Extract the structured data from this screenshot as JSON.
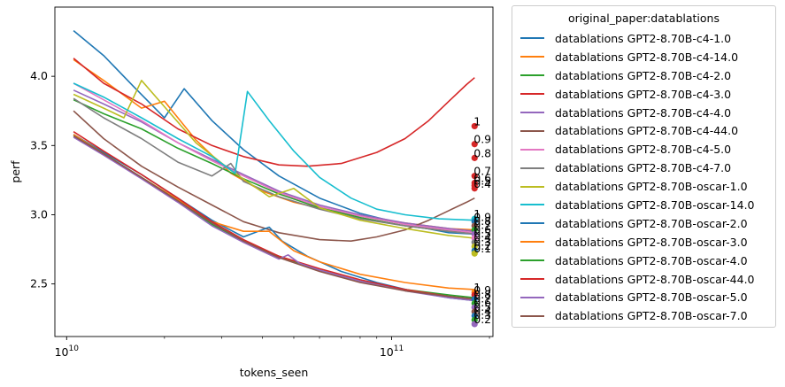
{
  "chart_data": {
    "type": "line",
    "xlabel": "tokens_seen",
    "ylabel": "perf",
    "xscale": "log",
    "xlim": [
      9200000000.0,
      205000000000.0
    ],
    "ylim": [
      2.12,
      4.5
    ],
    "x_ticks": [
      {
        "value": 10000000000.0,
        "base": "10",
        "exp": "10"
      },
      {
        "value": 100000000000.0,
        "base": "10",
        "exp": "11"
      }
    ],
    "y_ticks": [
      2.5,
      3.0,
      3.5,
      4.0
    ],
    "y_tick_labels": [
      "2.5",
      "3.0",
      "3.5",
      "4.0"
    ],
    "legend_title": "original_paper:datablations",
    "legend_position": "outside-right",
    "grid": false,
    "series": [
      {
        "name": "datablations GPT2-8.70B-c4-1.0",
        "color": "#1f77b4",
        "x": [
          10500000000.0,
          13000000000.0,
          16000000000.0,
          20000000000.0,
          23000000000.0,
          28000000000.0,
          35000000000.0,
          45000000000.0,
          60000000000.0,
          80000000000.0,
          110000000000.0,
          150000000000.0,
          180000000000.0
        ],
        "y": [
          4.33,
          4.15,
          3.93,
          3.7,
          3.91,
          3.68,
          3.47,
          3.28,
          3.12,
          3.01,
          2.93,
          2.87,
          2.86
        ]
      },
      {
        "name": "datablations GPT2-8.70B-c4-14.0",
        "color": "#ff7f0e",
        "x": [
          10500000000.0,
          13000000000.0,
          17000000000.0,
          20000000000.0,
          25000000000.0,
          32000000000.0,
          40000000000.0,
          50000000000.0,
          65000000000.0,
          80000000000.0,
          110000000000.0,
          150000000000.0,
          180000000000.0
        ],
        "y": [
          4.12,
          3.97,
          3.77,
          3.82,
          3.54,
          3.3,
          3.17,
          3.09,
          3.03,
          2.99,
          2.94,
          2.9,
          2.89
        ]
      },
      {
        "name": "datablations GPT2-8.70B-c4-2.0",
        "color": "#2ca02c",
        "x": [
          10500000000.0,
          13000000000.0,
          17000000000.0,
          22000000000.0,
          28000000000.0,
          35000000000.0,
          45000000000.0,
          60000000000.0,
          80000000000.0,
          110000000000.0,
          150000000000.0,
          180000000000.0
        ],
        "y": [
          3.83,
          3.73,
          3.62,
          3.48,
          3.37,
          3.26,
          3.15,
          3.05,
          2.98,
          2.92,
          2.88,
          2.87
        ]
      },
      {
        "name": "datablations GPT2-8.70B-c4-3.0",
        "color": "#d62728",
        "x": [
          10500000000.0,
          13000000000.0,
          17000000000.0,
          22000000000.0,
          28000000000.0,
          35000000000.0,
          45000000000.0,
          55000000000.0,
          70000000000.0,
          90000000000.0,
          110000000000.0,
          130000000000.0,
          150000000000.0,
          170000000000.0,
          180000000000.0
        ],
        "y": [
          4.13,
          3.95,
          3.8,
          3.62,
          3.5,
          3.42,
          3.36,
          3.35,
          3.37,
          3.45,
          3.55,
          3.68,
          3.82,
          3.94,
          3.99
        ]
      },
      {
        "name": "datablations GPT2-8.70B-c4-4.0",
        "color": "#9467bd",
        "x": [
          10500000000.0,
          13000000000.0,
          17000000000.0,
          22000000000.0,
          28000000000.0,
          35000000000.0,
          45000000000.0,
          60000000000.0,
          80000000000.0,
          110000000000.0,
          150000000000.0,
          180000000000.0
        ],
        "y": [
          3.9,
          3.8,
          3.67,
          3.52,
          3.4,
          3.29,
          3.17,
          3.07,
          3.0,
          2.94,
          2.9,
          2.88
        ]
      },
      {
        "name": "datablations GPT2-8.70B-c4-44.0",
        "color": "#8c564b",
        "x": [
          10500000000.0,
          13000000000.0,
          17000000000.0,
          22000000000.0,
          28000000000.0,
          35000000000.0,
          45000000000.0,
          60000000000.0,
          75000000000.0,
          90000000000.0,
          110000000000.0,
          130000000000.0,
          150000000000.0,
          170000000000.0,
          180000000000.0
        ],
        "y": [
          3.75,
          3.55,
          3.35,
          3.2,
          3.07,
          2.95,
          2.87,
          2.82,
          2.81,
          2.84,
          2.89,
          2.96,
          3.03,
          3.09,
          3.12
        ]
      },
      {
        "name": "datablations GPT2-8.70B-c4-5.0",
        "color": "#e377c2",
        "x": [
          10500000000.0,
          13000000000.0,
          17000000000.0,
          22000000000.0,
          28000000000.0,
          35000000000.0,
          45000000000.0,
          60000000000.0,
          80000000000.0,
          110000000000.0,
          150000000000.0,
          180000000000.0
        ],
        "y": [
          3.95,
          3.83,
          3.68,
          3.52,
          3.39,
          3.28,
          3.16,
          3.06,
          2.99,
          2.93,
          2.89,
          2.87
        ]
      },
      {
        "name": "datablations GPT2-8.70B-c4-7.0",
        "color": "#7f7f7f",
        "x": [
          10500000000.0,
          13000000000.0,
          17000000000.0,
          22000000000.0,
          28000000000.0,
          32000000000.0,
          35000000000.0,
          45000000000.0,
          60000000000.0,
          80000000000.0,
          110000000000.0,
          150000000000.0,
          180000000000.0
        ],
        "y": [
          3.84,
          3.7,
          3.55,
          3.38,
          3.28,
          3.37,
          3.24,
          3.13,
          3.04,
          2.97,
          2.92,
          2.88,
          2.86
        ]
      },
      {
        "name": "datablations GPT2-8.70B-oscar-1.0",
        "color": "#bcbd22",
        "x": [
          10500000000.0,
          13000000000.0,
          15000000000.0,
          17000000000.0,
          20000000000.0,
          25000000000.0,
          32000000000.0,
          42000000000.0,
          50000000000.0,
          60000000000.0,
          80000000000.0,
          110000000000.0,
          150000000000.0,
          180000000000.0
        ],
        "y": [
          3.87,
          3.77,
          3.7,
          3.97,
          3.78,
          3.52,
          3.32,
          3.13,
          3.19,
          3.05,
          2.96,
          2.9,
          2.85,
          2.83
        ]
      },
      {
        "name": "datablations GPT2-8.70B-oscar-14.0",
        "color": "#17becf",
        "x": [
          10500000000.0,
          13000000000.0,
          17000000000.0,
          22000000000.0,
          28000000000.0,
          33000000000.0,
          36000000000.0,
          42000000000.0,
          50000000000.0,
          60000000000.0,
          75000000000.0,
          90000000000.0,
          110000000000.0,
          140000000000.0,
          180000000000.0
        ],
        "y": [
          3.95,
          3.85,
          3.7,
          3.55,
          3.42,
          3.3,
          3.89,
          3.68,
          3.46,
          3.27,
          3.12,
          3.04,
          3.0,
          2.97,
          2.96
        ]
      },
      {
        "name": "datablations GPT2-8.70B-oscar-2.0",
        "color": "#1f77b4",
        "x": [
          10500000000.0,
          13000000000.0,
          17000000000.0,
          22000000000.0,
          28000000000.0,
          35000000000.0,
          42000000000.0,
          46000000000.0,
          55000000000.0,
          70000000000.0,
          90000000000.0,
          120000000000.0,
          150000000000.0,
          180000000000.0
        ],
        "y": [
          3.58,
          3.45,
          3.29,
          3.12,
          2.96,
          2.84,
          2.91,
          2.81,
          2.7,
          2.59,
          2.51,
          2.44,
          2.4,
          2.38
        ]
      },
      {
        "name": "datablations GPT2-8.70B-oscar-3.0",
        "color": "#ff7f0e",
        "x": [
          10500000000.0,
          13000000000.0,
          17000000000.0,
          22000000000.0,
          28000000000.0,
          35000000000.0,
          42000000000.0,
          50000000000.0,
          60000000000.0,
          80000000000.0,
          110000000000.0,
          150000000000.0,
          180000000000.0
        ],
        "y": [
          3.58,
          3.44,
          3.27,
          3.11,
          2.95,
          2.88,
          2.88,
          2.74,
          2.66,
          2.57,
          2.51,
          2.47,
          2.46
        ]
      },
      {
        "name": "datablations GPT2-8.70B-oscar-4.0",
        "color": "#2ca02c",
        "x": [
          10500000000.0,
          13000000000.0,
          17000000000.0,
          22000000000.0,
          28000000000.0,
          35000000000.0,
          45000000000.0,
          60000000000.0,
          80000000000.0,
          110000000000.0,
          150000000000.0,
          180000000000.0
        ],
        "y": [
          3.57,
          3.44,
          3.27,
          3.1,
          2.93,
          2.81,
          2.7,
          2.6,
          2.52,
          2.46,
          2.42,
          2.4
        ]
      },
      {
        "name": "datablations GPT2-8.70B-oscar-44.0",
        "color": "#d62728",
        "x": [
          10500000000.0,
          13000000000.0,
          17000000000.0,
          22000000000.0,
          28000000000.0,
          35000000000.0,
          45000000000.0,
          60000000000.0,
          80000000000.0,
          110000000000.0,
          150000000000.0,
          180000000000.0
        ],
        "y": [
          3.6,
          3.46,
          3.29,
          3.12,
          2.95,
          2.82,
          2.7,
          2.61,
          2.53,
          2.46,
          2.41,
          2.39
        ]
      },
      {
        "name": "datablations GPT2-8.70B-oscar-5.0",
        "color": "#9467bd",
        "x": [
          10500000000.0,
          13000000000.0,
          17000000000.0,
          22000000000.0,
          28000000000.0,
          35000000000.0,
          45000000000.0,
          48000000000.0,
          52000000000.0,
          60000000000.0,
          80000000000.0,
          110000000000.0,
          150000000000.0,
          180000000000.0
        ],
        "y": [
          3.56,
          3.43,
          3.26,
          3.09,
          2.92,
          2.8,
          2.68,
          2.71,
          2.65,
          2.6,
          2.52,
          2.45,
          2.4,
          2.38
        ]
      },
      {
        "name": "datablations GPT2-8.70B-oscar-7.0",
        "color": "#8c564b",
        "x": [
          10500000000.0,
          13000000000.0,
          17000000000.0,
          22000000000.0,
          28000000000.0,
          35000000000.0,
          45000000000.0,
          60000000000.0,
          80000000000.0,
          110000000000.0,
          150000000000.0,
          180000000000.0
        ],
        "y": [
          3.57,
          3.44,
          3.27,
          3.1,
          2.94,
          2.81,
          2.69,
          2.59,
          2.51,
          2.45,
          2.41,
          2.39
        ]
      }
    ],
    "scatter_points": [
      {
        "x": 180000000000.0,
        "y": 3.64,
        "label": "1",
        "color": "#d62728"
      },
      {
        "x": 180000000000.0,
        "y": 3.51,
        "label": "0.9",
        "color": "#d62728"
      },
      {
        "x": 180000000000.0,
        "y": 3.41,
        "label": "0.8",
        "color": "#d62728"
      },
      {
        "x": 180000000000.0,
        "y": 3.28,
        "label": "0.7",
        "color": "#d62728"
      },
      {
        "x": 180000000000.0,
        "y": 3.23,
        "label": "0.6",
        "color": "#d62728"
      },
      {
        "x": 180000000000.0,
        "y": 3.21,
        "label": "0.5",
        "color": "#d62728"
      },
      {
        "x": 180000000000.0,
        "y": 3.19,
        "label": "0.4",
        "color": "#d62728"
      },
      {
        "x": 180000000000.0,
        "y": 2.97,
        "label": "1",
        "color": "#17becf"
      },
      {
        "x": 180000000000.0,
        "y": 2.95,
        "label": "0.9",
        "color": "#1f77b4"
      },
      {
        "x": 180000000000.0,
        "y": 2.92,
        "label": "0.8",
        "color": "#8c564b"
      },
      {
        "x": 180000000000.0,
        "y": 2.89,
        "label": "0.7",
        "color": "#2ca02c"
      },
      {
        "x": 180000000000.0,
        "y": 2.86,
        "label": "0.6",
        "color": "#9467bd"
      },
      {
        "x": 180000000000.0,
        "y": 2.83,
        "label": "0.5",
        "color": "#e377c2"
      },
      {
        "x": 180000000000.0,
        "y": 2.8,
        "label": "0.4",
        "color": "#7f7f7f"
      },
      {
        "x": 180000000000.0,
        "y": 2.77,
        "label": "0.3",
        "color": "#bcbd22"
      },
      {
        "x": 180000000000.0,
        "y": 2.74,
        "label": "0.2",
        "color": "#1f77b4"
      },
      {
        "x": 180000000000.0,
        "y": 2.72,
        "label": "0.1",
        "color": "#bcbd22"
      },
      {
        "x": 180000000000.0,
        "y": 2.44,
        "label": "1",
        "color": "#ff7f0e"
      },
      {
        "x": 180000000000.0,
        "y": 2.42,
        "label": "0.9",
        "color": "#d62728"
      },
      {
        "x": 180000000000.0,
        "y": 2.39,
        "label": "0.8",
        "color": "#1f77b4"
      },
      {
        "x": 180000000000.0,
        "y": 2.36,
        "label": "0.7",
        "color": "#2ca02c"
      },
      {
        "x": 180000000000.0,
        "y": 2.33,
        "label": "0.6",
        "color": "#9467bd"
      },
      {
        "x": 180000000000.0,
        "y": 2.3,
        "label": "0.5",
        "color": "#8c564b"
      },
      {
        "x": 180000000000.0,
        "y": 2.27,
        "label": "0.4",
        "color": "#1f77b4"
      },
      {
        "x": 180000000000.0,
        "y": 2.24,
        "label": "0.3",
        "color": "#2ca02c"
      },
      {
        "x": 180000000000.0,
        "y": 2.21,
        "label": "0.2",
        "color": "#9467bd"
      }
    ]
  }
}
